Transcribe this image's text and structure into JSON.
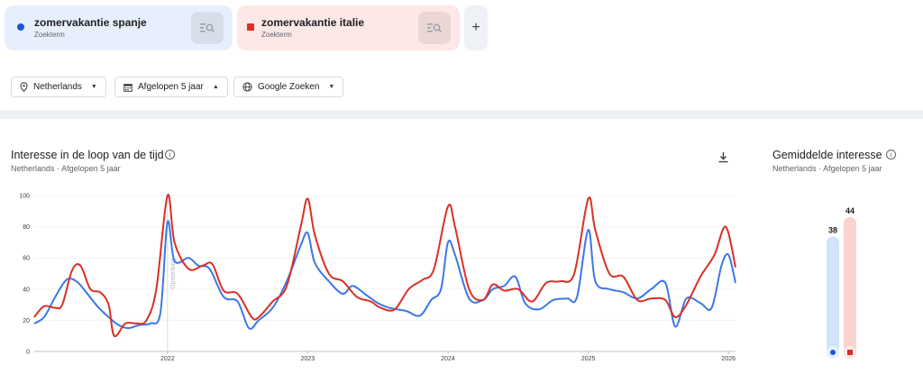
{
  "terms": [
    {
      "name": "zomervakantie spanje",
      "type": "Zoekterm",
      "color": "#1a56db",
      "marker": "circle"
    },
    {
      "name": "zomervakantie italie",
      "type": "Zoekterm",
      "color": "#d93025",
      "marker": "square"
    }
  ],
  "add_term_label": "+",
  "filters": {
    "region": "Netherlands",
    "period": "Afgelopen 5 jaar",
    "source": "Google Zoeken"
  },
  "interest_over_time": {
    "title": "Interesse in de loop van de tijd",
    "subtitle_region": "Netherlands",
    "subtitle_sep": "·",
    "subtitle_period": "Afgelopen 5 jaar"
  },
  "average_interest": {
    "title": "Gemiddelde interesse",
    "subtitle_region": "Netherlands",
    "subtitle_sep": "·",
    "subtitle_period": "Afgelopen 5 jaar",
    "values": [
      38,
      44
    ]
  },
  "chart_data": {
    "type": "line",
    "ylim": [
      0,
      100
    ],
    "yticks": [
      0,
      20,
      40,
      60,
      80,
      100
    ],
    "xlim": [
      2021.05,
      2026.05
    ],
    "xticks": [
      {
        "value": 2022,
        "label": "2022"
      },
      {
        "value": 2023,
        "label": "2023"
      },
      {
        "value": 2024,
        "label": "2024"
      },
      {
        "value": 2025,
        "label": "2025"
      },
      {
        "value": 2026,
        "label": "2026"
      }
    ],
    "annotation": {
      "x": 2022,
      "label": "Opmerking"
    },
    "series": [
      {
        "name": "zomervakantie spanje",
        "color": "#3b78e7",
        "points": [
          [
            2021.05,
            18
          ],
          [
            2021.12,
            22
          ],
          [
            2021.2,
            35
          ],
          [
            2021.28,
            46
          ],
          [
            2021.35,
            45
          ],
          [
            2021.42,
            38
          ],
          [
            2021.5,
            29
          ],
          [
            2021.58,
            22
          ],
          [
            2021.65,
            17
          ],
          [
            2021.72,
            15
          ],
          [
            2021.8,
            17
          ],
          [
            2021.88,
            18
          ],
          [
            2021.95,
            25
          ],
          [
            2022.0,
            83
          ],
          [
            2022.05,
            58
          ],
          [
            2022.15,
            60
          ],
          [
            2022.22,
            55
          ],
          [
            2022.3,
            53
          ],
          [
            2022.4,
            35
          ],
          [
            2022.5,
            32
          ],
          [
            2022.58,
            15
          ],
          [
            2022.65,
            20
          ],
          [
            2022.75,
            28
          ],
          [
            2022.85,
            45
          ],
          [
            2022.95,
            68
          ],
          [
            2023.0,
            76
          ],
          [
            2023.05,
            57
          ],
          [
            2023.15,
            45
          ],
          [
            2023.25,
            37
          ],
          [
            2023.32,
            42
          ],
          [
            2023.42,
            36
          ],
          [
            2023.5,
            31
          ],
          [
            2023.58,
            28
          ],
          [
            2023.7,
            26
          ],
          [
            2023.8,
            23
          ],
          [
            2023.88,
            33
          ],
          [
            2023.95,
            40
          ],
          [
            2024.0,
            70
          ],
          [
            2024.05,
            62
          ],
          [
            2024.15,
            34
          ],
          [
            2024.25,
            33
          ],
          [
            2024.32,
            40
          ],
          [
            2024.4,
            42
          ],
          [
            2024.48,
            48
          ],
          [
            2024.55,
            31
          ],
          [
            2024.65,
            27
          ],
          [
            2024.75,
            33
          ],
          [
            2024.85,
            34
          ],
          [
            2024.92,
            35
          ],
          [
            2025.0,
            78
          ],
          [
            2025.05,
            45
          ],
          [
            2025.15,
            40
          ],
          [
            2025.25,
            38
          ],
          [
            2025.35,
            34
          ],
          [
            2025.45,
            40
          ],
          [
            2025.55,
            44
          ],
          [
            2025.62,
            16
          ],
          [
            2025.7,
            34
          ],
          [
            2025.8,
            31
          ],
          [
            2025.88,
            28
          ],
          [
            2025.95,
            55
          ],
          [
            2026.0,
            62
          ],
          [
            2026.05,
            44
          ]
        ]
      },
      {
        "name": "zomervakantie italie",
        "color": "#d93025",
        "points": [
          [
            2021.05,
            22
          ],
          [
            2021.12,
            29
          ],
          [
            2021.2,
            28
          ],
          [
            2021.25,
            30
          ],
          [
            2021.32,
            52
          ],
          [
            2021.38,
            55
          ],
          [
            2021.45,
            40
          ],
          [
            2021.52,
            38
          ],
          [
            2021.58,
            30
          ],
          [
            2021.62,
            10
          ],
          [
            2021.7,
            18
          ],
          [
            2021.78,
            18
          ],
          [
            2021.85,
            20
          ],
          [
            2021.92,
            40
          ],
          [
            2022.0,
            100
          ],
          [
            2022.05,
            70
          ],
          [
            2022.15,
            53
          ],
          [
            2022.25,
            55
          ],
          [
            2022.32,
            56
          ],
          [
            2022.4,
            39
          ],
          [
            2022.5,
            37
          ],
          [
            2022.6,
            22
          ],
          [
            2022.65,
            22
          ],
          [
            2022.75,
            32
          ],
          [
            2022.85,
            42
          ],
          [
            2022.95,
            80
          ],
          [
            2023.0,
            98
          ],
          [
            2023.05,
            75
          ],
          [
            2023.15,
            50
          ],
          [
            2023.25,
            45
          ],
          [
            2023.35,
            35
          ],
          [
            2023.45,
            32
          ],
          [
            2023.52,
            28
          ],
          [
            2023.62,
            27
          ],
          [
            2023.72,
            40
          ],
          [
            2023.82,
            46
          ],
          [
            2023.9,
            53
          ],
          [
            2024.0,
            93
          ],
          [
            2024.05,
            80
          ],
          [
            2024.15,
            40
          ],
          [
            2024.25,
            33
          ],
          [
            2024.32,
            43
          ],
          [
            2024.4,
            39
          ],
          [
            2024.5,
            40
          ],
          [
            2024.6,
            32
          ],
          [
            2024.7,
            44
          ],
          [
            2024.8,
            45
          ],
          [
            2024.9,
            50
          ],
          [
            2025.0,
            98
          ],
          [
            2025.05,
            78
          ],
          [
            2025.15,
            50
          ],
          [
            2025.25,
            48
          ],
          [
            2025.35,
            33
          ],
          [
            2025.45,
            34
          ],
          [
            2025.55,
            33
          ],
          [
            2025.62,
            22
          ],
          [
            2025.7,
            30
          ],
          [
            2025.8,
            48
          ],
          [
            2025.9,
            62
          ],
          [
            2025.98,
            80
          ],
          [
            2026.05,
            54
          ]
        ]
      }
    ]
  }
}
